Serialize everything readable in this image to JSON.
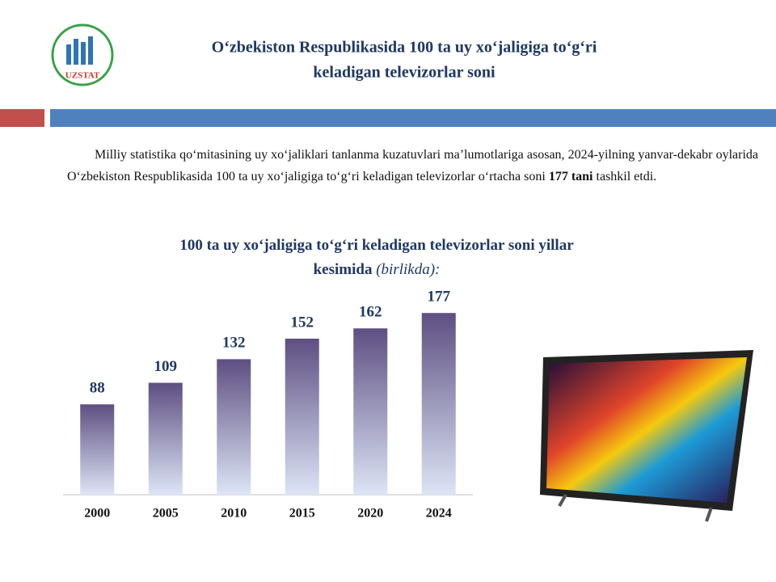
{
  "header": {
    "title_line1": "O‘zbekiston Respublikasida 100 ta uy xo‘jaligiga to‘g‘ri",
    "title_line2": "keladigan televizorlar soni",
    "logo_text": "UZSTAT"
  },
  "paragraph": [
    "Milliy statistika qo‘mitasining uy xo‘jaliklari tanlanma kuzatuvlari ma’lumotlariga asosan, 2024-yilning yanvar-dekabr oylarida O‘zbekiston Respublikasida 100 ta uy xo‘jaligiga to‘g‘ri keladigan televizorlar o‘rtacha soni ",
    "177 tani",
    " tashkil etdi."
  ],
  "chart_data": {
    "type": "bar",
    "title": "100 ta uy xo‘jaligiga to‘g‘ri keladigan televizorlar soni yillar kesimida",
    "subtitle": "(birlikda):",
    "categories": [
      "2000",
      "2005",
      "2010",
      "2015",
      "2020",
      "2024"
    ],
    "values": [
      88,
      109,
      132,
      152,
      162,
      177
    ],
    "color": "#5e4f82"
  }
}
